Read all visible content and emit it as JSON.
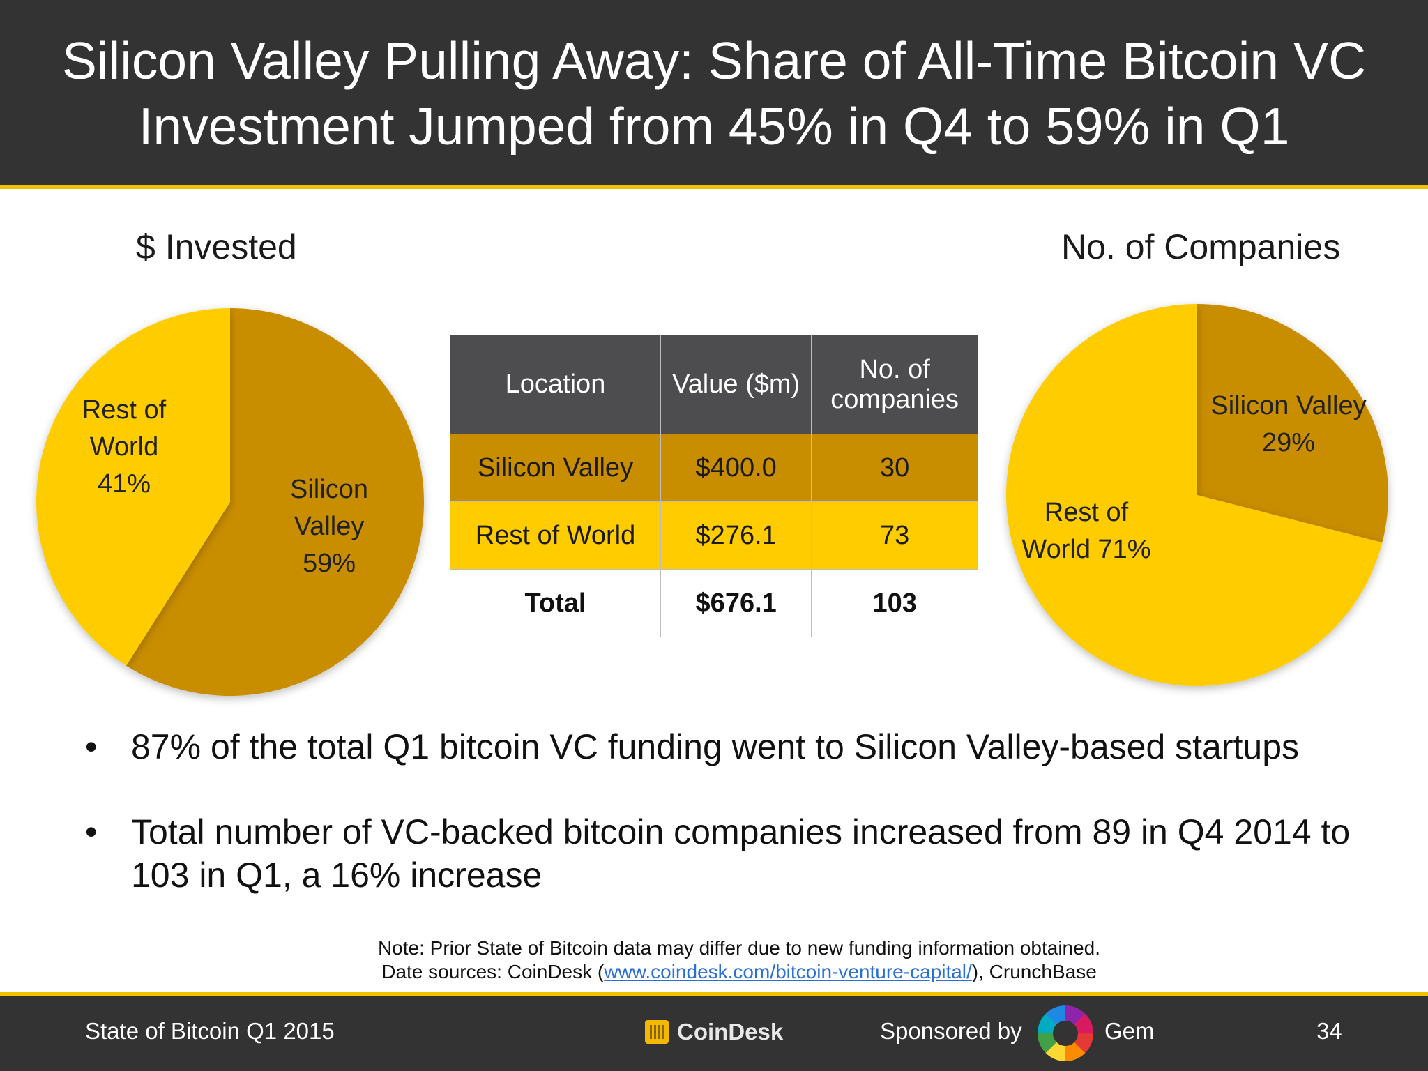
{
  "title": "Silicon Valley Pulling Away: Share of All-Time Bitcoin VC Investment Jumped from 45% in Q4 to 59% in Q1",
  "colors": {
    "header": "#333333",
    "accent": "#f2c200",
    "silicon_valley": "#c98d00",
    "rest_of_world": "#ffcc00"
  },
  "chart_data": [
    {
      "type": "pie",
      "title": "$ Invested",
      "slices": [
        {
          "name": "Silicon Valley",
          "value": 59,
          "label_lines": [
            "Silicon",
            "Valley",
            "59%"
          ],
          "color": "#c98d00"
        },
        {
          "name": "Rest of World",
          "value": 41,
          "label_lines": [
            "Rest of",
            "World",
            "41%"
          ],
          "color": "#ffcc00"
        }
      ]
    },
    {
      "type": "pie",
      "title": "No. of Companies",
      "slices": [
        {
          "name": "Silicon Valley",
          "value": 29,
          "label_lines": [
            "Silicon Valley",
            "29%"
          ],
          "color": "#c98d00"
        },
        {
          "name": "Rest of World",
          "value": 71,
          "label_lines": [
            "Rest of",
            "World 71%"
          ],
          "color": "#ffcc00"
        }
      ]
    },
    {
      "type": "table",
      "columns": [
        "Location",
        "Value ($m)",
        "No. of companies"
      ],
      "rows": [
        [
          "Silicon Valley",
          "$400.0",
          "30"
        ],
        [
          "Rest of World",
          "$276.1",
          "73"
        ],
        [
          "Total",
          "$676.1",
          "103"
        ]
      ]
    }
  ],
  "table": {
    "headers": {
      "location": "Location",
      "value": "Value ($m)",
      "companies_l1": "No. of",
      "companies_l2": "companies"
    },
    "rows": [
      {
        "location": "Silicon Valley",
        "value": "$400.0",
        "companies": "30"
      },
      {
        "location": "Rest of World",
        "value": "$276.1",
        "companies": "73"
      },
      {
        "location": "Total",
        "value": "$676.1",
        "companies": "103"
      }
    ]
  },
  "bullets": [
    "87% of the total Q1 bitcoin VC funding went to Silicon Valley-based startups",
    "Total number of VC-backed bitcoin companies increased from 89 in Q4 2014 to 103 in Q1, a 16% increase"
  ],
  "bullet_glyph": "•",
  "note": {
    "line1": "Note: Prior State of Bitcoin data may differ due to new funding information obtained.",
    "line2_prefix": "Date sources: CoinDesk (",
    "link": "www.coindesk.com/bitcoin-venture-capital/",
    "line2_suffix": "), CrunchBase"
  },
  "footer": {
    "left": "State of Bitcoin Q1 2015",
    "brand": "CoinDesk",
    "sponsored": "Sponsored by",
    "sponsor": "Gem",
    "page": "34"
  }
}
